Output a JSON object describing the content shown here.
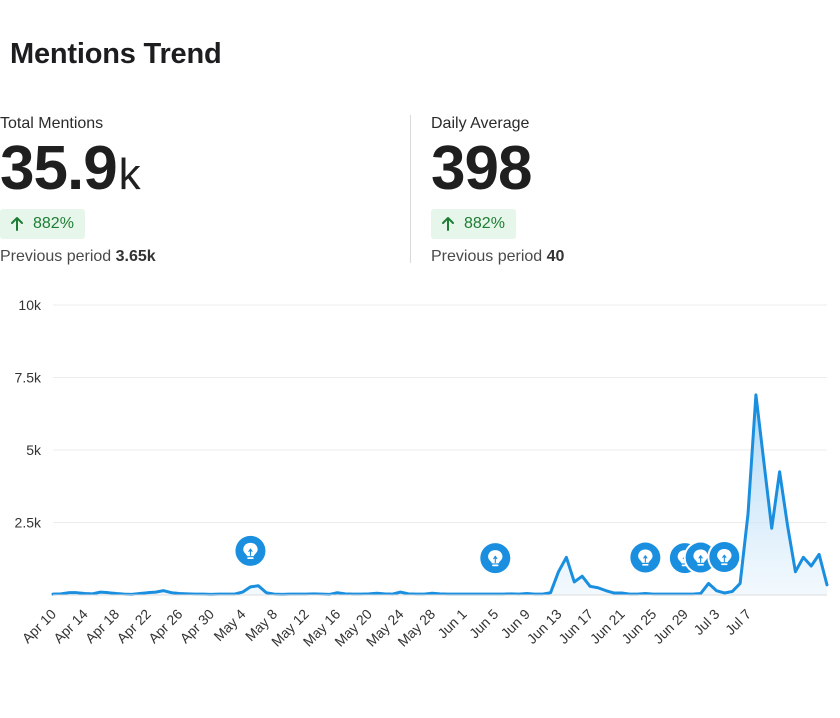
{
  "header": {
    "title": "Mentions Trend"
  },
  "kpis": {
    "total": {
      "label": "Total Mentions",
      "value": "35.9",
      "unit": "k",
      "change": "882%",
      "previous_label": "Previous period",
      "previous_value": "3.65k"
    },
    "daily": {
      "label": "Daily Average",
      "value": "398",
      "change": "882%",
      "previous_label": "Previous period",
      "previous_value": "40"
    }
  },
  "colors": {
    "line": "#1a8fe0",
    "fill_top": "#9fd0f3",
    "fill_bottom": "#eaf5fd",
    "marker": "#1a8fe0",
    "grid": "#ececec",
    "positive_badge_bg": "#e7f6ea",
    "positive_badge_text": "#1e7d34"
  },
  "chart_data": {
    "type": "area",
    "ylim": [
      0,
      10000
    ],
    "yticks": [
      {
        "value": 2500,
        "label": "2.5k"
      },
      {
        "value": 5000,
        "label": "5k"
      },
      {
        "value": 7500,
        "label": "7.5k"
      },
      {
        "value": 10000,
        "label": "10k"
      }
    ],
    "grid": true,
    "x_tick_labels": [
      "Apr 10",
      "Apr 14",
      "Apr 18",
      "Apr 22",
      "Apr 26",
      "Apr 30",
      "May 4",
      "May 8",
      "May 12",
      "May 16",
      "May 20",
      "May 24",
      "May 28",
      "Jun 1",
      "Jun 5",
      "Jun 9",
      "Jun 13",
      "Jun 17",
      "Jun 21",
      "Jun 25",
      "Jun 29",
      "Jul 3",
      "Jul 7"
    ],
    "x_start": "Apr 10",
    "x_end": "Jul 8",
    "values": [
      30,
      40,
      80,
      80,
      50,
      40,
      100,
      80,
      50,
      30,
      20,
      50,
      80,
      100,
      150,
      80,
      50,
      40,
      30,
      30,
      20,
      30,
      30,
      30,
      100,
      280,
      320,
      80,
      30,
      20,
      30,
      30,
      30,
      40,
      30,
      20,
      80,
      40,
      30,
      30,
      40,
      60,
      40,
      30,
      100,
      40,
      30,
      30,
      60,
      40,
      30,
      30,
      30,
      30,
      30,
      30,
      30,
      30,
      40,
      30,
      50,
      30,
      30,
      80,
      800,
      1300,
      450,
      650,
      300,
      250,
      150,
      70,
      70,
      30,
      30,
      50,
      30,
      30,
      30,
      30,
      30,
      30,
      50,
      400,
      150,
      70,
      120,
      400,
      2800,
      6900,
      4600,
      2300,
      4250,
      2400,
      800,
      1300,
      1000,
      1400,
      350
    ],
    "insight_markers": [
      {
        "date": "May 5"
      },
      {
        "date": "Jun 5"
      },
      {
        "date": "Jun 24"
      },
      {
        "date": "Jun 29"
      },
      {
        "date": "Jul 1"
      },
      {
        "date": "Jul 4"
      }
    ]
  }
}
